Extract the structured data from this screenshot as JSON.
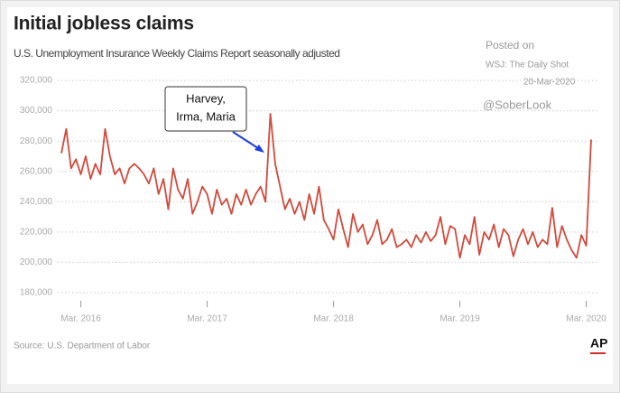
{
  "chart_data": {
    "type": "line",
    "title": "Initial jobless claims",
    "subtitle": "U.S. Unemployment Insurance Weekly Claims Report seasonally adjusted",
    "source": "Source: U.S. Department of Labor",
    "logo": "AP",
    "annotation": [
      "Harvey,",
      "Irma, Maria"
    ],
    "watermark": [
      "Posted on",
      "WSJ: The Daily Shot",
      "20-Mar-2020",
      "@SoberLook"
    ],
    "categories": [
      null,
      null,
      null,
      null,
      "Mar. 2016",
      null,
      null,
      null,
      null,
      null,
      null,
      null,
      null,
      null,
      null,
      null,
      null,
      null,
      null,
      null,
      null,
      null,
      null,
      null,
      null,
      null,
      null,
      null,
      null,
      null,
      "Mar. 2017",
      null,
      null,
      null,
      null,
      null,
      null,
      null,
      null,
      null,
      null,
      null,
      null,
      null,
      null,
      null,
      null,
      null,
      null,
      null,
      null,
      null,
      null,
      null,
      null,
      null,
      "Mar. 2018",
      null,
      null,
      null,
      null,
      null,
      null,
      null,
      null,
      null,
      null,
      null,
      null,
      null,
      null,
      null,
      null,
      null,
      null,
      null,
      null,
      null,
      null,
      null,
      null,
      null,
      "Mar. 2019",
      null,
      null,
      null,
      null,
      null,
      null,
      null,
      null,
      null,
      null,
      null,
      null,
      null,
      null,
      null,
      null,
      null,
      null,
      null,
      null,
      null,
      null,
      null,
      null,
      null,
      "Mar. 2020",
      null
    ],
    "series": [
      {
        "name": "Initial jobless claims",
        "color": "#d24a3c",
        "values": [
          272000,
          288000,
          262000,
          268000,
          258000,
          270000,
          255000,
          265000,
          258000,
          288000,
          270000,
          258000,
          262000,
          252000,
          262000,
          265000,
          262000,
          258000,
          252000,
          262000,
          245000,
          255000,
          235000,
          262000,
          248000,
          242000,
          255000,
          232000,
          240000,
          250000,
          245000,
          232000,
          248000,
          238000,
          242000,
          232000,
          245000,
          238000,
          248000,
          238000,
          245000,
          250000,
          240000,
          298000,
          265000,
          250000,
          235000,
          242000,
          232000,
          240000,
          228000,
          245000,
          232000,
          250000,
          228000,
          222000,
          215000,
          235000,
          222000,
          210000,
          232000,
          220000,
          225000,
          212000,
          218000,
          228000,
          212000,
          215000,
          222000,
          210000,
          212000,
          215000,
          210000,
          218000,
          213000,
          220000,
          214000,
          218000,
          230000,
          212000,
          224000,
          222000,
          203000,
          218000,
          212000,
          230000,
          205000,
          220000,
          215000,
          225000,
          210000,
          222000,
          218000,
          204000,
          215000,
          222000,
          212000,
          220000,
          210000,
          215000,
          212000,
          236000,
          210000,
          224000,
          215000,
          208000,
          203000,
          218000,
          211000,
          281000
        ]
      }
    ],
    "ylim": [
      180000,
      320000
    ],
    "yticks": [
      {
        "value": 180000,
        "label": "180,000"
      },
      {
        "value": 200000,
        "label": "200,000"
      },
      {
        "value": 220000,
        "label": "220,000"
      },
      {
        "value": 240000,
        "label": "240,000"
      },
      {
        "value": 260000,
        "label": "260,000"
      },
      {
        "value": 280000,
        "label": "280,000"
      },
      {
        "value": 300000,
        "label": "300,000"
      },
      {
        "value": 320000,
        "label": "320,000"
      }
    ],
    "grid": true
  }
}
